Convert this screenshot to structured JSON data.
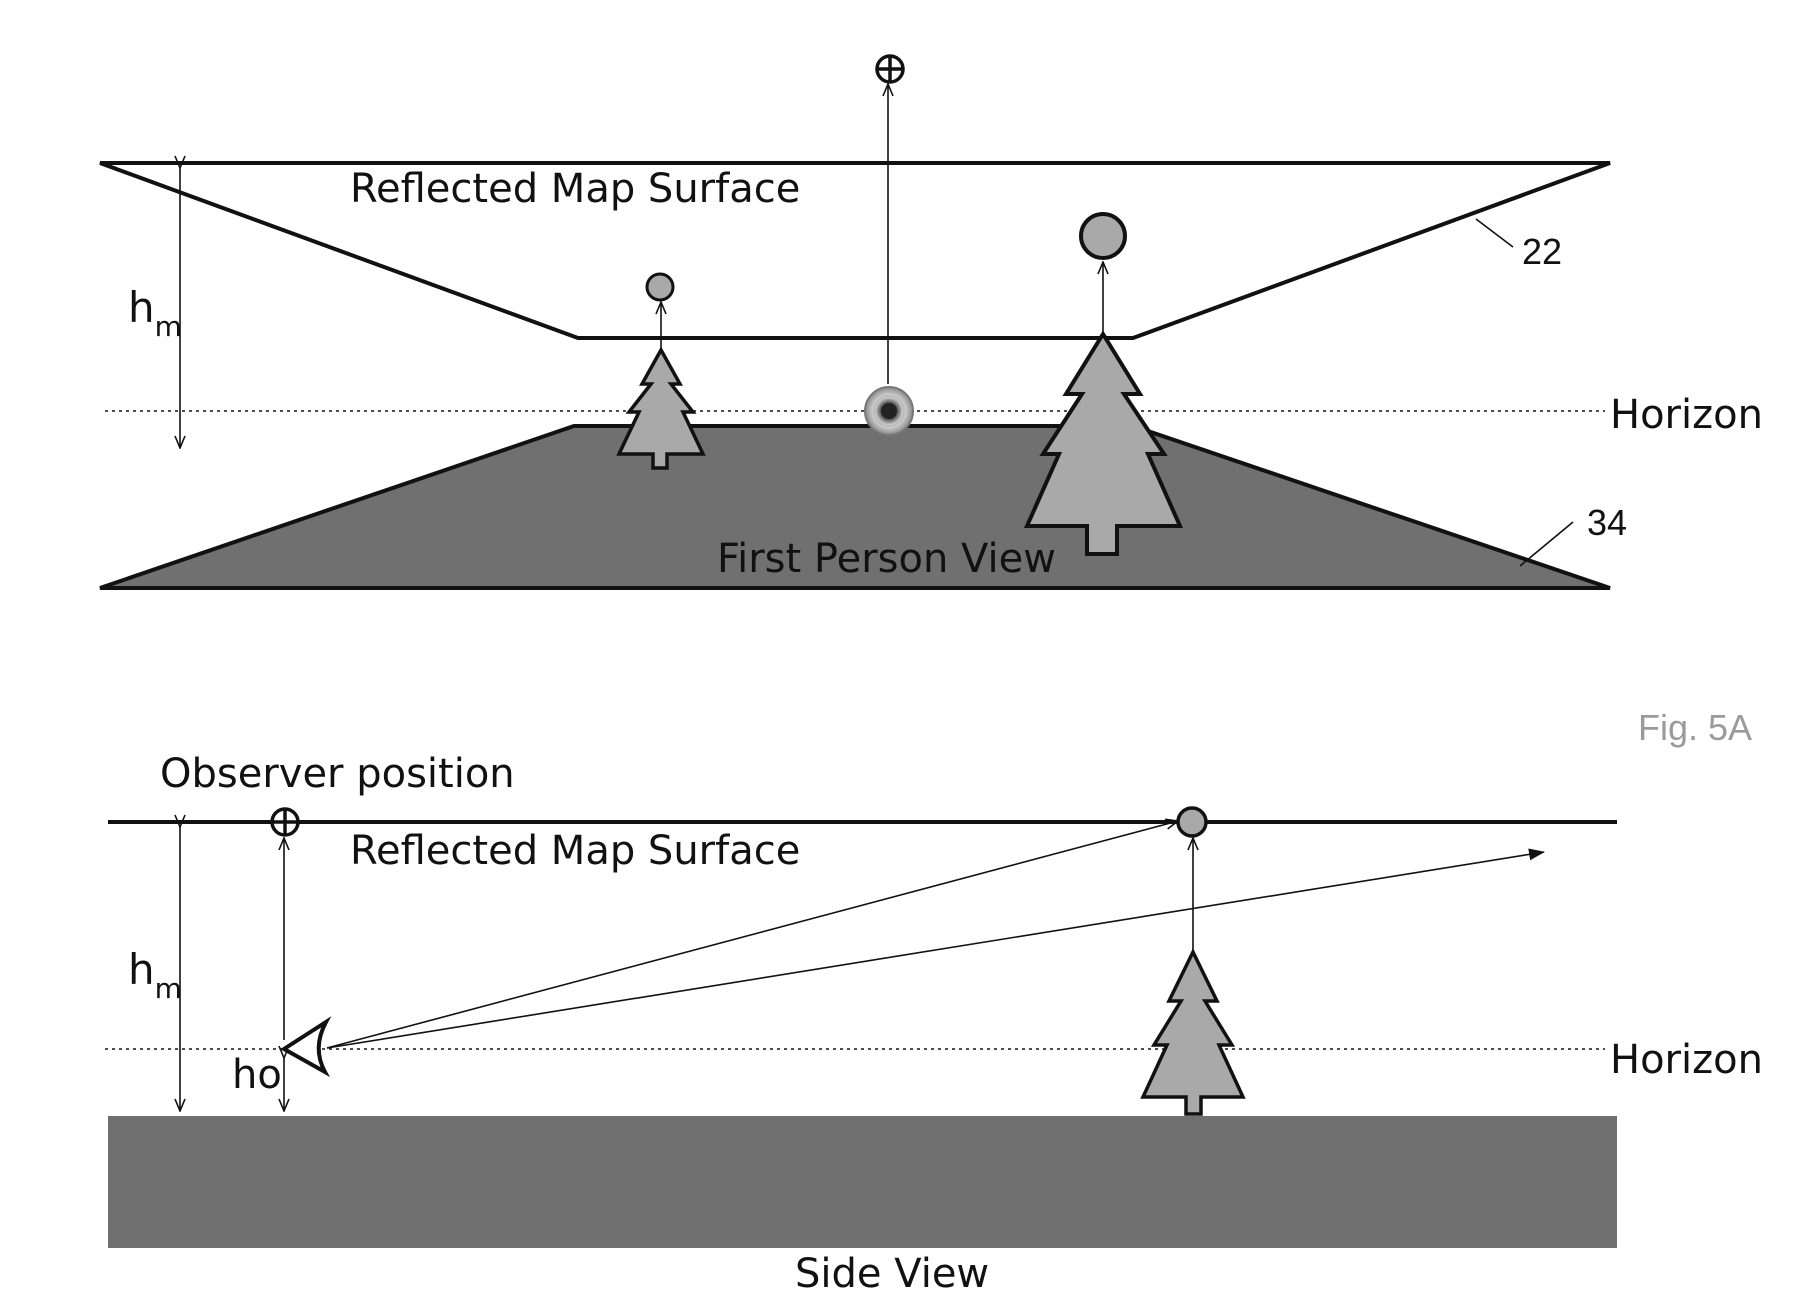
{
  "figure": {
    "fig_label": "Fig. 5A"
  },
  "top_view": {
    "reflected_label": "Reflected Map Surface",
    "first_person_label": "First Person View",
    "horizon_label": "Horizon",
    "height_label": "h",
    "height_subscript": "m",
    "ref_22": "22",
    "ref_34": "34"
  },
  "side_view": {
    "observer_label": "Observer position",
    "reflected_label": "Reflected Map Surface",
    "side_view_label": "Side View",
    "horizon_label": "Horizon",
    "height_label": "h",
    "height_subscript": "m",
    "observer_height_label": "ho"
  },
  "colors": {
    "ground": "#707070",
    "tree_fill": "#a9a9a9",
    "stroke": "#111111",
    "fig_label": "#9a9a9a"
  }
}
